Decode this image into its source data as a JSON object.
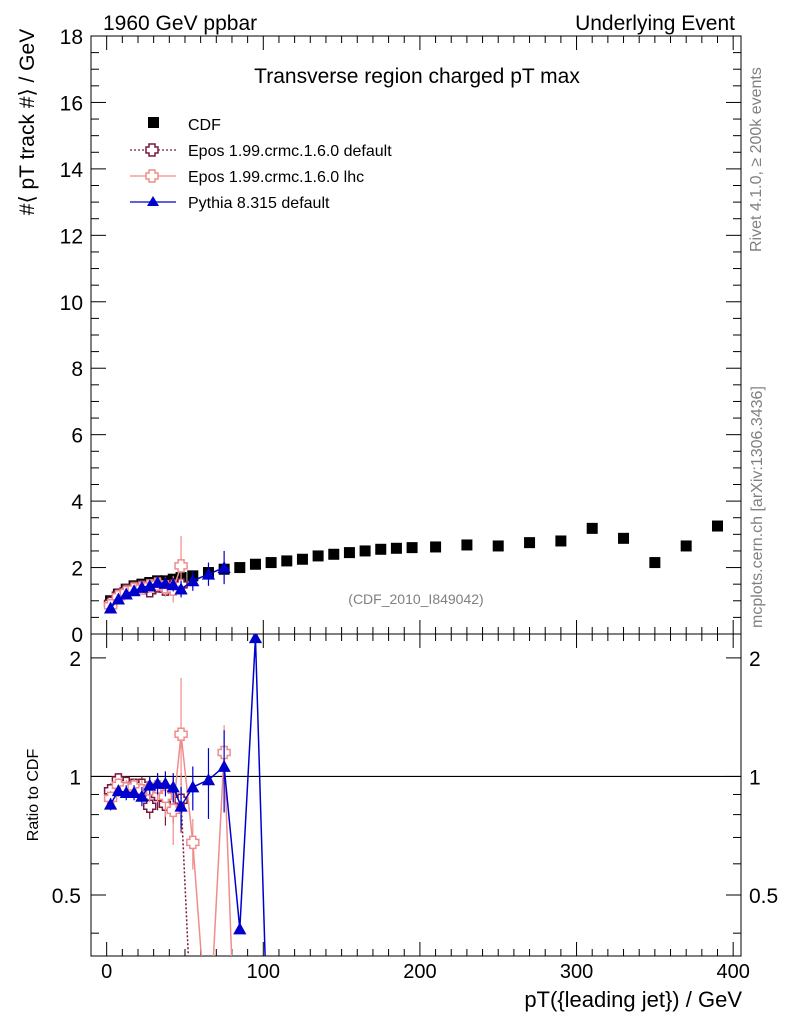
{
  "header": {
    "left": "1960 GeV ppbar",
    "right": "Underlying Event"
  },
  "side": {
    "rivet": "Rivet 4.1.0, ≥ 200k events",
    "mcplots": "mcplots.cern.ch [arXiv:1306.3436]"
  },
  "analysis_id": "(CDF_2010_I849042)",
  "chart_data": [
    {
      "type": "scatter",
      "title": "Transverse region charged pT max",
      "ylabel": "#⟨ pT track #⟩ / GeV",
      "xlabel": "",
      "xlim": [
        -10,
        405
      ],
      "ylim": [
        0,
        18
      ],
      "yticks": [
        0,
        2,
        4,
        6,
        8,
        10,
        12,
        14,
        16,
        18
      ],
      "legend": {
        "position": "top-left",
        "entries": [
          "CDF",
          "Epos 1.99.crmc.1.6.0 default",
          "Epos 1.99.crmc.1.6.0 lhc",
          "Pythia 8.315 default"
        ]
      },
      "series": [
        {
          "name": "CDF",
          "color": "#000000",
          "marker": "square",
          "x": [
            2.5,
            7.5,
            12.5,
            17.5,
            22.5,
            27.5,
            32.5,
            37.5,
            42.5,
            47.5,
            55,
            65,
            75,
            85,
            95,
            105,
            115,
            125,
            135,
            145,
            155,
            165,
            175,
            185,
            195,
            210,
            230,
            250,
            270,
            290,
            310,
            330,
            350,
            370,
            390
          ],
          "y": [
            1.0,
            1.2,
            1.35,
            1.45,
            1.5,
            1.55,
            1.6,
            1.6,
            1.65,
            1.7,
            1.75,
            1.85,
            1.95,
            2.0,
            2.1,
            2.15,
            2.2,
            2.25,
            2.35,
            2.4,
            2.45,
            2.5,
            2.55,
            2.58,
            2.6,
            2.62,
            2.68,
            2.65,
            2.75,
            2.8,
            3.18,
            2.88,
            2.15,
            2.65,
            3.25
          ]
        },
        {
          "name": "Epos 1.99.crmc.1.6.0 default",
          "color": "#7a1840",
          "marker": "open-cross",
          "style": "dotted",
          "x": [
            2.5,
            7.5,
            12.5,
            17.5,
            22.5,
            27.5,
            32.5,
            37.5,
            42.5,
            47.5
          ],
          "y": [
            0.92,
            1.17,
            1.3,
            1.38,
            1.42,
            1.3,
            1.45,
            1.35,
            1.45,
            1.48
          ],
          "err": [
            0.05,
            0.06,
            0.07,
            0.08,
            0.1,
            0.12,
            0.15,
            0.2,
            0.25,
            0.3
          ]
        },
        {
          "name": "Epos 1.99.crmc.1.6.0 lhc",
          "color": "#f08c8c",
          "marker": "open-cross",
          "style": "solid",
          "x": [
            2.5,
            7.5,
            12.5,
            17.5,
            22.5,
            27.5,
            32.5,
            37.5,
            42.5,
            47.5
          ],
          "y": [
            0.85,
            1.12,
            1.25,
            1.35,
            1.38,
            1.45,
            1.5,
            1.42,
            1.35,
            2.05
          ],
          "err": [
            0.05,
            0.06,
            0.08,
            0.1,
            0.12,
            0.15,
            0.2,
            0.3,
            0.4,
            0.9
          ]
        },
        {
          "name": "Pythia 8.315 default",
          "color": "#0000cc",
          "marker": "triangle",
          "style": "solid",
          "x": [
            2.5,
            7.5,
            12.5,
            17.5,
            22.5,
            27.5,
            32.5,
            37.5,
            42.5,
            47.5,
            55,
            65,
            75
          ],
          "y": [
            0.78,
            1.05,
            1.2,
            1.3,
            1.4,
            1.45,
            1.55,
            1.52,
            1.48,
            1.35,
            1.6,
            1.8,
            2.0
          ],
          "err": [
            0.04,
            0.05,
            0.06,
            0.07,
            0.08,
            0.1,
            0.12,
            0.15,
            0.2,
            0.25,
            0.3,
            0.35,
            0.5
          ]
        }
      ]
    },
    {
      "type": "line",
      "title": "",
      "ylabel": "Ratio to CDF",
      "xlabel": "pT({leading jet}) / GeV",
      "xlim": [
        -10,
        405
      ],
      "ylim": [
        0.35,
        2.3
      ],
      "yscale": "log",
      "xticks": [
        0,
        100,
        200,
        300,
        400
      ],
      "yticks": [
        0.5,
        1,
        2
      ],
      "reference": 1,
      "series": [
        {
          "name": "Epos 1.99.crmc.1.6.0 default",
          "color": "#7a1840",
          "style": "dotted",
          "x": [
            2.5,
            7.5,
            12.5,
            17.5,
            22.5,
            27.5,
            32.5,
            37.5,
            42.5,
            47.5,
            55
          ],
          "y": [
            0.92,
            0.98,
            0.96,
            0.95,
            0.95,
            0.84,
            0.9,
            0.85,
            0.88,
            0.87,
            0.2
          ],
          "err": [
            0.04,
            0.04,
            0.04,
            0.04,
            0.05,
            0.06,
            0.08,
            0.1,
            0.12,
            0.15,
            0
          ]
        },
        {
          "name": "Epos 1.99.crmc.1.6.0 lhc",
          "color": "#f08c8c",
          "style": "solid",
          "x": [
            2.5,
            7.5,
            12.5,
            17.5,
            22.5,
            27.5,
            32.5,
            37.5,
            42.5,
            47.5,
            55,
            65,
            75,
            82
          ],
          "y": [
            0.88,
            0.95,
            0.93,
            0.94,
            0.92,
            0.93,
            0.94,
            0.89,
            0.82,
            1.28,
            0.68,
            0.2,
            1.15,
            0.2
          ],
          "err": [
            0.04,
            0.04,
            0.05,
            0.05,
            0.06,
            0.07,
            0.08,
            0.1,
            0.15,
            0.5,
            0.1,
            0,
            0.2,
            0
          ]
        },
        {
          "name": "Pythia 8.315 default",
          "color": "#0000cc",
          "style": "solid",
          "x": [
            2.5,
            7.5,
            12.5,
            17.5,
            22.5,
            27.5,
            32.5,
            37.5,
            42.5,
            47.5,
            55,
            65,
            75,
            85,
            95,
            103
          ],
          "y": [
            0.85,
            0.92,
            0.91,
            0.91,
            0.89,
            0.95,
            0.96,
            0.96,
            0.94,
            0.84,
            0.94,
            0.98,
            1.06,
            0.41,
            2.25,
            0.2
          ],
          "err": [
            0.03,
            0.03,
            0.04,
            0.04,
            0.05,
            0.05,
            0.06,
            0.07,
            0.08,
            0.1,
            0.12,
            0.2,
            0.25,
            0,
            0,
            0
          ]
        }
      ]
    }
  ]
}
